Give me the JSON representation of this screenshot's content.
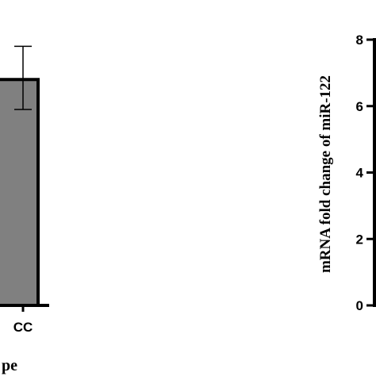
{
  "chart_data": [
    {
      "type": "bar",
      "categories": [
        "CC"
      ],
      "values": [
        6.8
      ],
      "error_upper": [
        7.8
      ],
      "error_lower": [
        5.9
      ],
      "bar_color": "#808080",
      "ylim": [
        0,
        8
      ],
      "xlabel_fragment": "pe"
    },
    {
      "type": "bar",
      "categories": [],
      "values": [],
      "ylabel": "mRNA fold change of miR-122",
      "ylim": [
        0,
        8
      ],
      "yticks": [
        0,
        2,
        4,
        6,
        8
      ]
    }
  ]
}
